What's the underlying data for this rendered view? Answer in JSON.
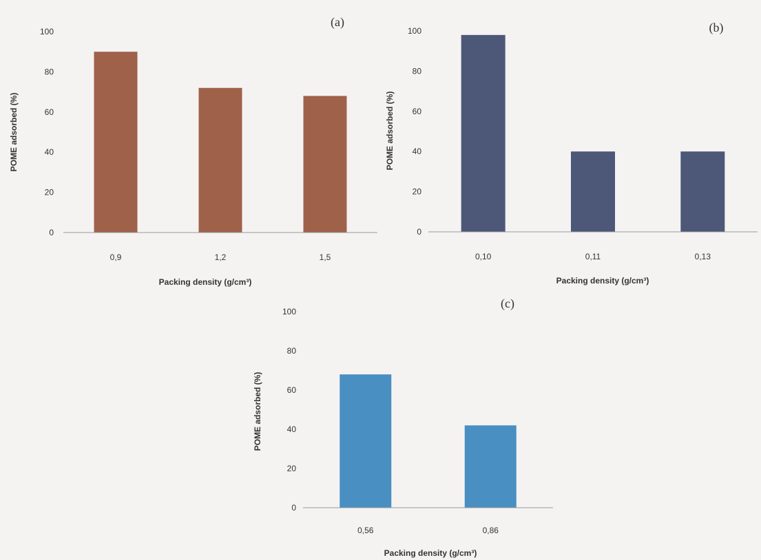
{
  "chart_data": [
    {
      "type": "bar",
      "panel_label": "(a)",
      "categories": [
        "0,9",
        "1,2",
        "1,5"
      ],
      "values": [
        90,
        72,
        68
      ],
      "xlabel": "Packing density (g/cm³)",
      "ylabel": "POME adsorbed (%)",
      "ylim": [
        0,
        100
      ],
      "yticks": [
        0,
        20,
        40,
        60,
        80,
        100
      ],
      "color": "#a0614a",
      "grid": false
    },
    {
      "type": "bar",
      "panel_label": "(b)",
      "categories": [
        "0,10",
        "0,11",
        "0,13"
      ],
      "values": [
        98,
        40,
        40
      ],
      "xlabel": "Packing density (g/cm³)",
      "ylabel": "POME adsorbed (%)",
      "ylim": [
        0,
        100
      ],
      "yticks": [
        0,
        20,
        40,
        60,
        80,
        100
      ],
      "color": "#4d5878",
      "grid": false
    },
    {
      "type": "bar",
      "panel_label": "(c)",
      "categories": [
        "0,56",
        "0,86"
      ],
      "values": [
        68,
        42
      ],
      "xlabel": "Packing density (g/cm³)",
      "ylabel": "POME adsorbed (%)",
      "ylim": [
        0,
        100
      ],
      "yticks": [
        0,
        20,
        40,
        60,
        80,
        100
      ],
      "color": "#4a8fc2",
      "grid": false
    }
  ]
}
